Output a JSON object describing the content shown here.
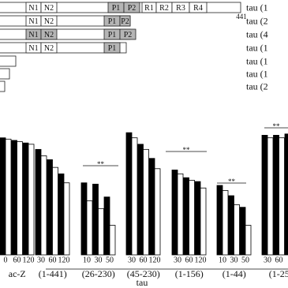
{
  "diagram": {
    "constructs": [
      {
        "label": "tau (1",
        "segments": [
          "N1",
          "N2",
          "P1",
          "P2",
          "R1",
          "R2",
          "R3",
          "R4"
        ]
      },
      {
        "label": "tau (2",
        "segments": [
          "N1",
          "N2",
          "P1",
          "P2"
        ]
      },
      {
        "label": "tau (4",
        "segments": [
          "N1",
          "N2",
          "P1",
          "P2"
        ]
      },
      {
        "label": "tau (1",
        "segments": [
          "N1",
          "N2",
          "P1"
        ]
      },
      {
        "label": "tau (1",
        "segments": []
      },
      {
        "label": "tau (1",
        "segments": []
      },
      {
        "label": "tau (2",
        "segments": []
      }
    ],
    "length_label": "441"
  },
  "chart_data": {
    "type": "bar",
    "xlabel": "tau",
    "groups": [
      {
        "label": "ac-Z",
        "categories": [
          "0",
          "60",
          "120"
        ]
      },
      {
        "label": "(1-441)",
        "categories": [
          "30",
          "60",
          "120"
        ]
      },
      {
        "label": "(26-230)",
        "categories": [
          "10",
          "30",
          "50"
        ]
      },
      {
        "label": "(45-230)",
        "categories": [
          "30",
          "60",
          "120"
        ]
      },
      {
        "label": "(1-156)",
        "categories": [
          "30",
          "60",
          "120"
        ]
      },
      {
        "label": "(1-44)",
        "categories": [
          "10",
          "30",
          "50"
        ]
      },
      {
        "label": "(1-25",
        "categories": [
          "30",
          "60",
          "1"
        ]
      }
    ],
    "series": [
      {
        "color": "#000000",
        "values": [
          91,
          89,
          87,
          82,
          74,
          63,
          56,
          55,
          45,
          95,
          86,
          75,
          66,
          60,
          57,
          54,
          46,
          37,
          93,
          93,
          94
        ]
      },
      {
        "color": "#ffffff",
        "values": [
          90,
          88,
          86,
          77,
          68,
          56,
          42,
          36,
          23,
          91,
          82,
          67,
          63,
          58,
          52,
          50,
          39,
          23,
          91,
          91,
          93
        ]
      }
    ],
    "ylim": [
      0,
      100
    ],
    "annotations": [
      "**",
      "**",
      "**",
      "**"
    ]
  }
}
